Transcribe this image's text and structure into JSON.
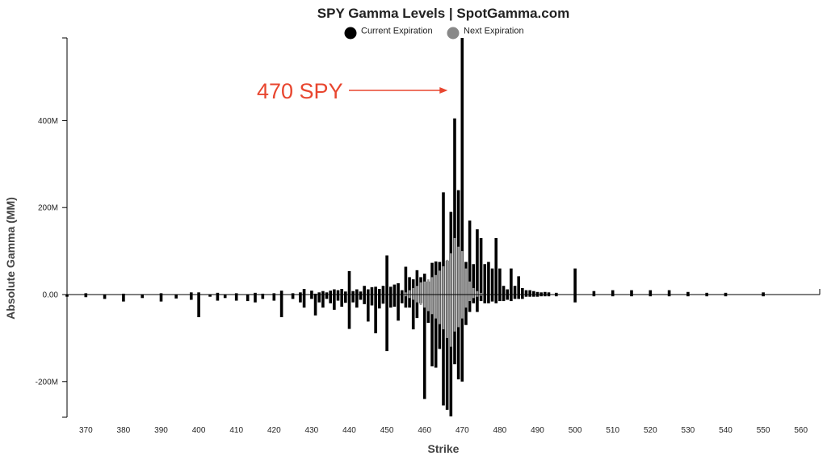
{
  "chart_data": {
    "type": "bar",
    "title": "SPY Gamma Levels | SpotGamma.com",
    "xlabel": "Strike",
    "ylabel": "Absolute Gamma (MM)",
    "xlim": [
      365,
      565
    ],
    "ylim": [
      -283,
      590
    ],
    "xticks": [
      "370",
      "380",
      "390",
      "400",
      "410",
      "420",
      "430",
      "440",
      "450",
      "460",
      "470",
      "480",
      "490",
      "500",
      "510",
      "520",
      "530",
      "540",
      "550",
      "560"
    ],
    "yticks": [
      {
        "value": 400,
        "label": "400M"
      },
      {
        "value": 200,
        "label": "200M"
      },
      {
        "value": 0,
        "label": "0.00"
      },
      {
        "value": -200,
        "label": "-200M"
      }
    ],
    "legend_position": "top-center",
    "series": [
      {
        "name": "Current Expiration",
        "color": "#000000",
        "points": [
          [
            365,
            0,
            -5
          ],
          [
            370,
            3,
            -6
          ],
          [
            375,
            0,
            -10
          ],
          [
            380,
            2,
            -16
          ],
          [
            385,
            0,
            -8
          ],
          [
            390,
            3,
            -16
          ],
          [
            394,
            0,
            -9
          ],
          [
            398,
            5,
            -12
          ],
          [
            400,
            5,
            -52
          ],
          [
            403,
            0,
            -5
          ],
          [
            405,
            4,
            -14
          ],
          [
            407,
            0,
            -8
          ],
          [
            410,
            3,
            -14
          ],
          [
            413,
            0,
            -15
          ],
          [
            415,
            4,
            -18
          ],
          [
            417,
            2,
            -10
          ],
          [
            420,
            3,
            -14
          ],
          [
            422,
            9,
            -52
          ],
          [
            425,
            3,
            -10
          ],
          [
            427,
            5,
            -18
          ],
          [
            428,
            13,
            -30
          ],
          [
            430,
            9,
            -10
          ],
          [
            431,
            2,
            -48
          ],
          [
            432,
            5,
            -18
          ],
          [
            433,
            8,
            -30
          ],
          [
            434,
            5,
            -10
          ],
          [
            435,
            9,
            -20
          ],
          [
            436,
            12,
            -35
          ],
          [
            437,
            10,
            -14
          ],
          [
            438,
            13,
            -28
          ],
          [
            439,
            7,
            -19
          ],
          [
            440,
            54,
            -79
          ],
          [
            441,
            8,
            -18
          ],
          [
            442,
            12,
            -30
          ],
          [
            443,
            7,
            -12
          ],
          [
            444,
            20,
            -22
          ],
          [
            445,
            12,
            -62
          ],
          [
            446,
            17,
            -25
          ],
          [
            447,
            18,
            -89
          ],
          [
            448,
            13,
            -32
          ],
          [
            449,
            20,
            -21
          ],
          [
            450,
            90,
            -130
          ],
          [
            451,
            18,
            -30
          ],
          [
            452,
            23,
            -28
          ],
          [
            453,
            26,
            -60
          ],
          [
            454,
            10,
            -20
          ],
          [
            455,
            64,
            -30
          ],
          [
            456,
            40,
            -30
          ],
          [
            457,
            35,
            -80
          ],
          [
            458,
            56,
            -54
          ],
          [
            459,
            40,
            -20
          ],
          [
            460,
            48,
            -240
          ],
          [
            461,
            30,
            -65
          ],
          [
            462,
            73,
            -165
          ],
          [
            463,
            76,
            -168
          ],
          [
            464,
            75,
            -125
          ],
          [
            465,
            235,
            -255
          ],
          [
            466,
            78,
            -265
          ],
          [
            467,
            190,
            -280
          ],
          [
            468,
            405,
            -160
          ],
          [
            469,
            240,
            -195
          ],
          [
            470,
            590,
            -200
          ],
          [
            471,
            75,
            -70
          ],
          [
            472,
            170,
            -40
          ],
          [
            473,
            70,
            -20
          ],
          [
            474,
            150,
            -40
          ],
          [
            475,
            130,
            -15
          ],
          [
            476,
            70,
            -20
          ],
          [
            477,
            75,
            -20
          ],
          [
            478,
            60,
            -16
          ],
          [
            479,
            130,
            -20
          ],
          [
            480,
            60,
            -15
          ],
          [
            481,
            20,
            -15
          ],
          [
            482,
            12,
            -12
          ],
          [
            483,
            60,
            -15
          ],
          [
            484,
            20,
            -10
          ],
          [
            485,
            42,
            -10
          ],
          [
            486,
            15,
            -10
          ],
          [
            487,
            10,
            -5
          ],
          [
            488,
            10,
            -5
          ],
          [
            489,
            8,
            -5
          ],
          [
            490,
            6,
            -5
          ],
          [
            491,
            5,
            -4
          ],
          [
            492,
            6,
            -4
          ],
          [
            493,
            5,
            -4
          ],
          [
            495,
            4,
            -4
          ],
          [
            500,
            60,
            -18
          ],
          [
            505,
            8,
            -4
          ],
          [
            510,
            10,
            -4
          ],
          [
            515,
            10,
            -4
          ],
          [
            520,
            10,
            -4
          ],
          [
            525,
            10,
            -4
          ],
          [
            530,
            6,
            -4
          ],
          [
            535,
            4,
            -4
          ],
          [
            540,
            4,
            -4
          ],
          [
            550,
            5,
            -4
          ]
        ]
      },
      {
        "name": "Next Expiration",
        "color": "#999999",
        "points": [
          [
            455,
            5,
            -4
          ],
          [
            456,
            10,
            -8
          ],
          [
            457,
            15,
            -12
          ],
          [
            458,
            20,
            -18
          ],
          [
            459,
            28,
            -24
          ],
          [
            460,
            30,
            -30
          ],
          [
            461,
            35,
            -38
          ],
          [
            462,
            40,
            -45
          ],
          [
            463,
            45,
            -55
          ],
          [
            464,
            55,
            -68
          ],
          [
            465,
            65,
            -80
          ],
          [
            466,
            80,
            -100
          ],
          [
            467,
            95,
            -120
          ],
          [
            468,
            130,
            -85
          ],
          [
            469,
            110,
            -75
          ],
          [
            470,
            100,
            -55
          ],
          [
            471,
            60,
            -30
          ],
          [
            472,
            30,
            -15
          ],
          [
            473,
            15,
            -8
          ],
          [
            474,
            8,
            -5
          ],
          [
            475,
            4,
            -3
          ]
        ]
      }
    ],
    "annotations": [
      {
        "text": "470 SPY",
        "color": "#e8462f",
        "points_to_x": 470
      }
    ]
  }
}
